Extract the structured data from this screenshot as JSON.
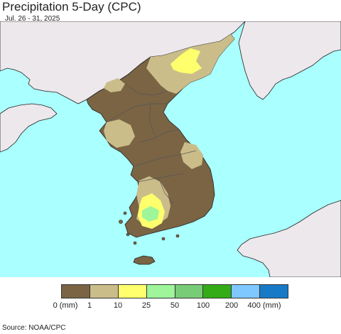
{
  "header": {
    "title": "Precipitation 5-Day (CPC)",
    "subtitle": "Jul. 26 - 31, 2025"
  },
  "map": {
    "colors": {
      "ocean": "#aaffff",
      "land_outside": "#ece8ec",
      "lt1": "#7a6444",
      "r1_10": "#cbbd8a",
      "r10_25": "#ffff6e",
      "r25_50": "#9ef59a",
      "border": "#555555"
    }
  },
  "legend": {
    "colors": [
      "#7a6444",
      "#cbbd8a",
      "#ffff6e",
      "#9ef59a",
      "#78cc78",
      "#34ac18",
      "#7ec7ff",
      "#187ac6"
    ],
    "ticks": [
      "0 (mm)",
      "1",
      "10",
      "25",
      "50",
      "100",
      "200",
      "400 (mm)"
    ]
  },
  "footer": {
    "source": "Source: NOAA/CPC"
  }
}
